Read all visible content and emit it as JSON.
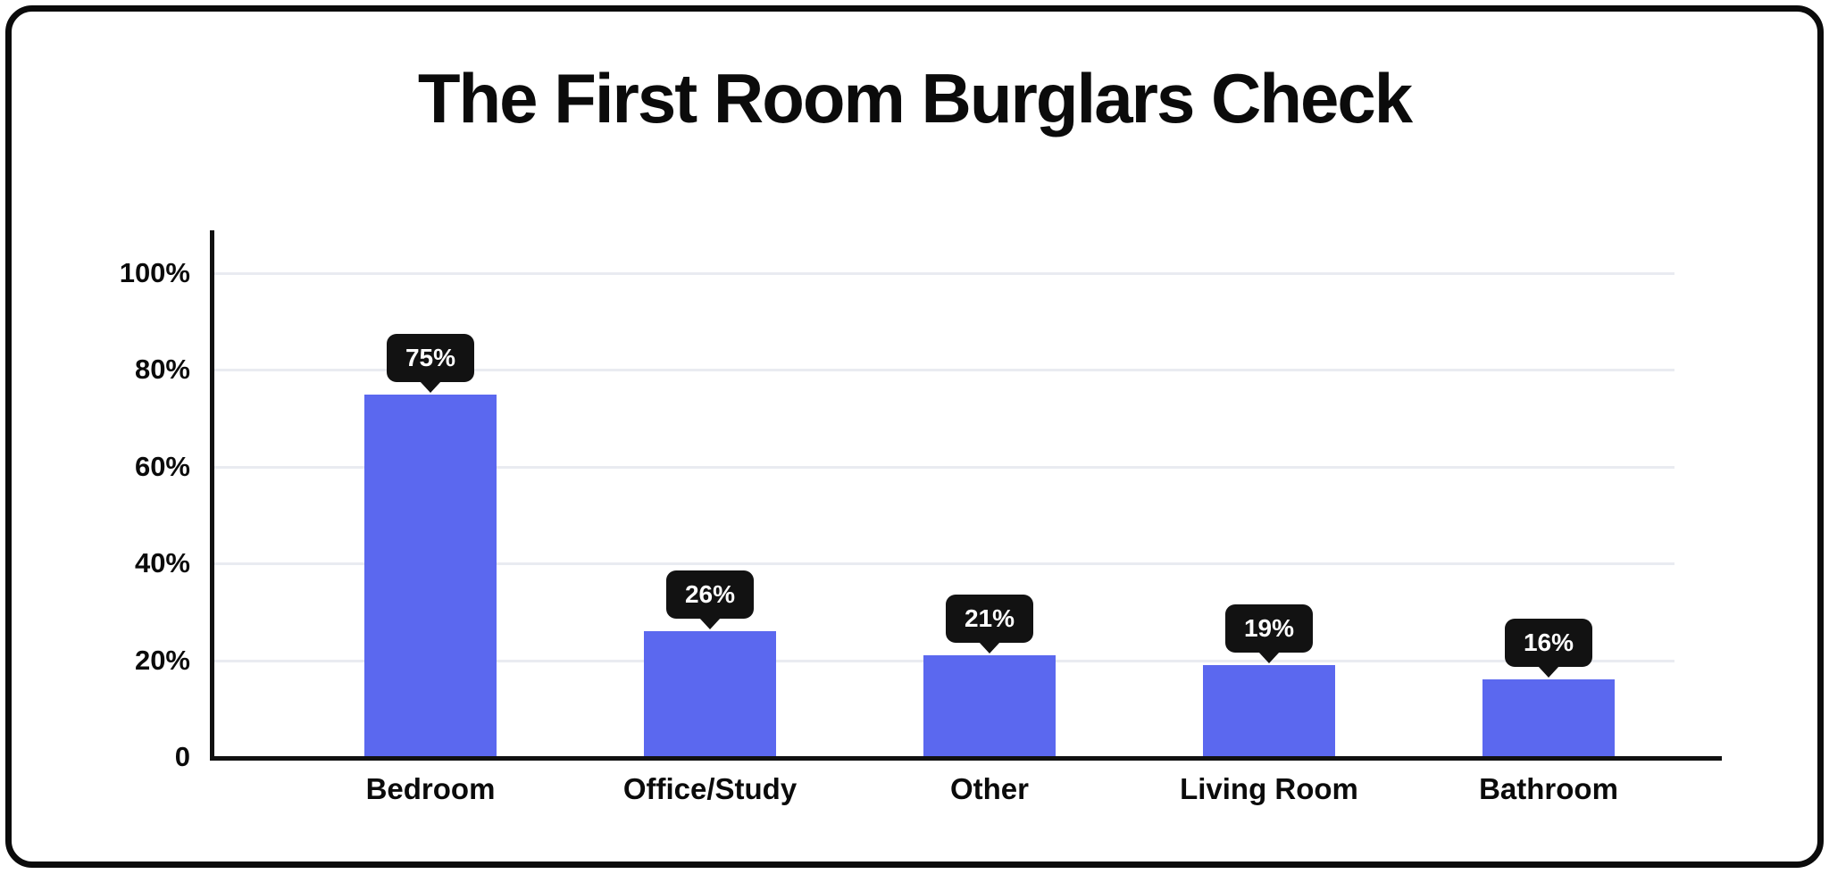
{
  "card": {
    "background": "#FFFFFF",
    "border_color": "#0B0B0B"
  },
  "chart_data": {
    "type": "bar",
    "title": "The First Room Burglars Check",
    "categories": [
      "Bedroom",
      "Office/Study",
      "Other",
      "Living Room",
      "Bathroom"
    ],
    "values": [
      75,
      26,
      21,
      19,
      16
    ],
    "value_labels": [
      "75%",
      "26%",
      "21%",
      "19%",
      "16%"
    ],
    "xlabel": "",
    "ylabel": "",
    "ylim": [
      0,
      100
    ],
    "y_ticks": [
      {
        "label": "100%",
        "value": 100
      },
      {
        "label": "80%",
        "value": 80
      },
      {
        "label": "60%",
        "value": 60
      },
      {
        "label": "40%",
        "value": 40
      },
      {
        "label": "20%",
        "value": 20
      },
      {
        "label": "0",
        "value": 0
      }
    ],
    "grid": true,
    "legend": false,
    "bar_color": "#5B68EF",
    "value_label_bg": "#121212",
    "value_label_text_color": "#FFFFFF",
    "gridline_color": "#E9EBF1",
    "axis_color": "#111111",
    "text_color": "#0B0B0B"
  }
}
